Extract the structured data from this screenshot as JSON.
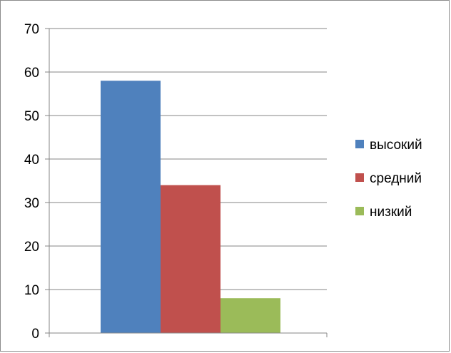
{
  "chart_data": {
    "type": "bar",
    "title": "",
    "xlabel": "",
    "ylabel": "",
    "categories": [
      ""
    ],
    "series": [
      {
        "name": "высокий",
        "values": [
          58
        ],
        "color": "#4f81bd"
      },
      {
        "name": "средний",
        "values": [
          34
        ],
        "color": "#c0504d"
      },
      {
        "name": "низкий",
        "values": [
          8
        ],
        "color": "#9bbb59"
      }
    ],
    "ylim": [
      0,
      70
    ],
    "yticks": [
      "0",
      "10",
      "20",
      "30",
      "40",
      "50",
      "60",
      "70"
    ],
    "grid": "horizontal",
    "legend_position": "right"
  }
}
